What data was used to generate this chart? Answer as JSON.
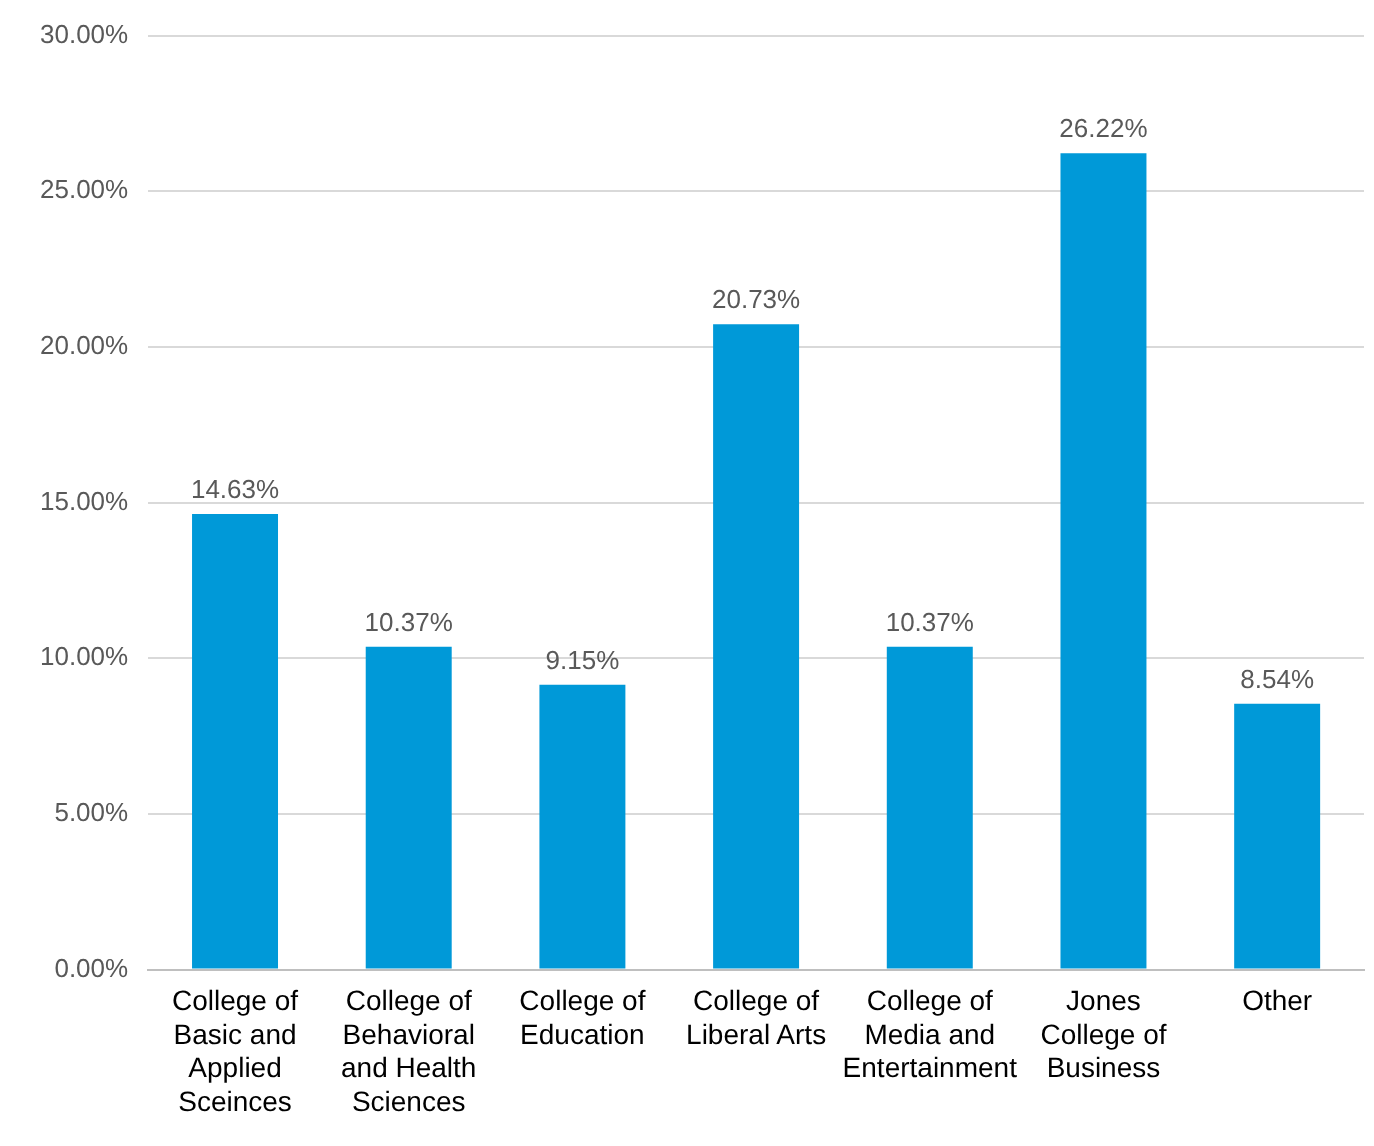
{
  "chart_data": {
    "type": "bar",
    "categories": [
      "College of Basic and Applied Sceinces",
      "College of Behavioral and Health Sciences",
      "College of Education",
      "College of Liberal Arts",
      "College of Media and Entertainment",
      "Jones College of Business",
      "Other"
    ],
    "values": [
      14.63,
      10.37,
      9.15,
      20.73,
      10.37,
      26.22,
      8.54
    ],
    "value_labels": [
      "14.63%",
      "10.37%",
      "9.15%",
      "20.73%",
      "10.37%",
      "26.22%",
      "8.54%"
    ],
    "color": "#0099d8",
    "ylim": [
      0,
      30
    ],
    "yticks": [
      {
        "value": 0,
        "label": "0.00%"
      },
      {
        "value": 5,
        "label": "5.00%"
      },
      {
        "value": 10,
        "label": "10.00%"
      },
      {
        "value": 15,
        "label": "15.00%"
      },
      {
        "value": 20,
        "label": "20.00%"
      },
      {
        "value": 25,
        "label": "25.00%"
      },
      {
        "value": 30,
        "label": "30.00%"
      }
    ],
    "grid": "y",
    "legend": false
  }
}
